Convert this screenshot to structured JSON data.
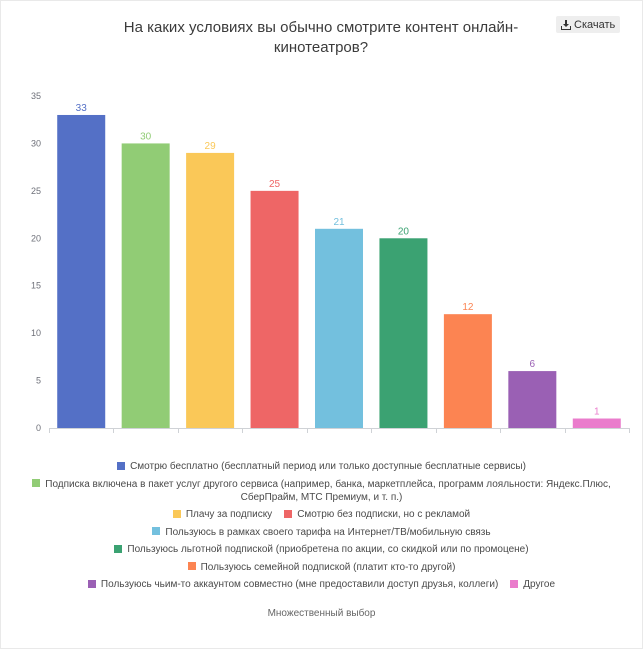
{
  "toolbar": {
    "download_label": "Скачать",
    "download_icon": "download-icon"
  },
  "chart_data": {
    "type": "bar",
    "title": "На каких условиях вы обычно смотрите контент онлайн-кинотеатров?",
    "categories": [
      "Смотрю бесплатно (бесплатный период или только доступные бесплатные сервисы)",
      "Подписка включена в пакет услуг другого сервиса (например, банка, маркетплейса, программ лояльности: Яндекс.Плюс, СберПрайм, МТС Премиум, и т. п.)",
      "Плачу за подписку",
      "Смотрю без подписки, но с рекламой",
      "Пользуюсь в рамках своего тарифа на Интернет/ТВ/мобильную связь",
      "Пользуюсь льготной подпиской (приобретена по акции, со скидкой или по промоцене)",
      "Пользуюсь семейной подпиской (платит кто-то другой)",
      "Пользуюсь чьим-то аккаунтом совместно (мне предоставили доступ друзья, коллеги)",
      "Другое"
    ],
    "values": [
      33,
      30,
      29,
      25,
      21,
      20,
      12,
      6,
      1
    ],
    "colors": [
      "#5470c6",
      "#91cc75",
      "#fac858",
      "#ee6666",
      "#73c0de",
      "#3ba272",
      "#fc8452",
      "#9a60b4",
      "#ea7ccc"
    ],
    "ylim": [
      0,
      35
    ],
    "yticks": [
      0,
      5,
      10,
      15,
      20,
      25,
      30,
      35
    ],
    "grid": false,
    "data_labels": true,
    "legend_position": "bottom"
  },
  "footer": {
    "note": "Множественный выбор"
  }
}
